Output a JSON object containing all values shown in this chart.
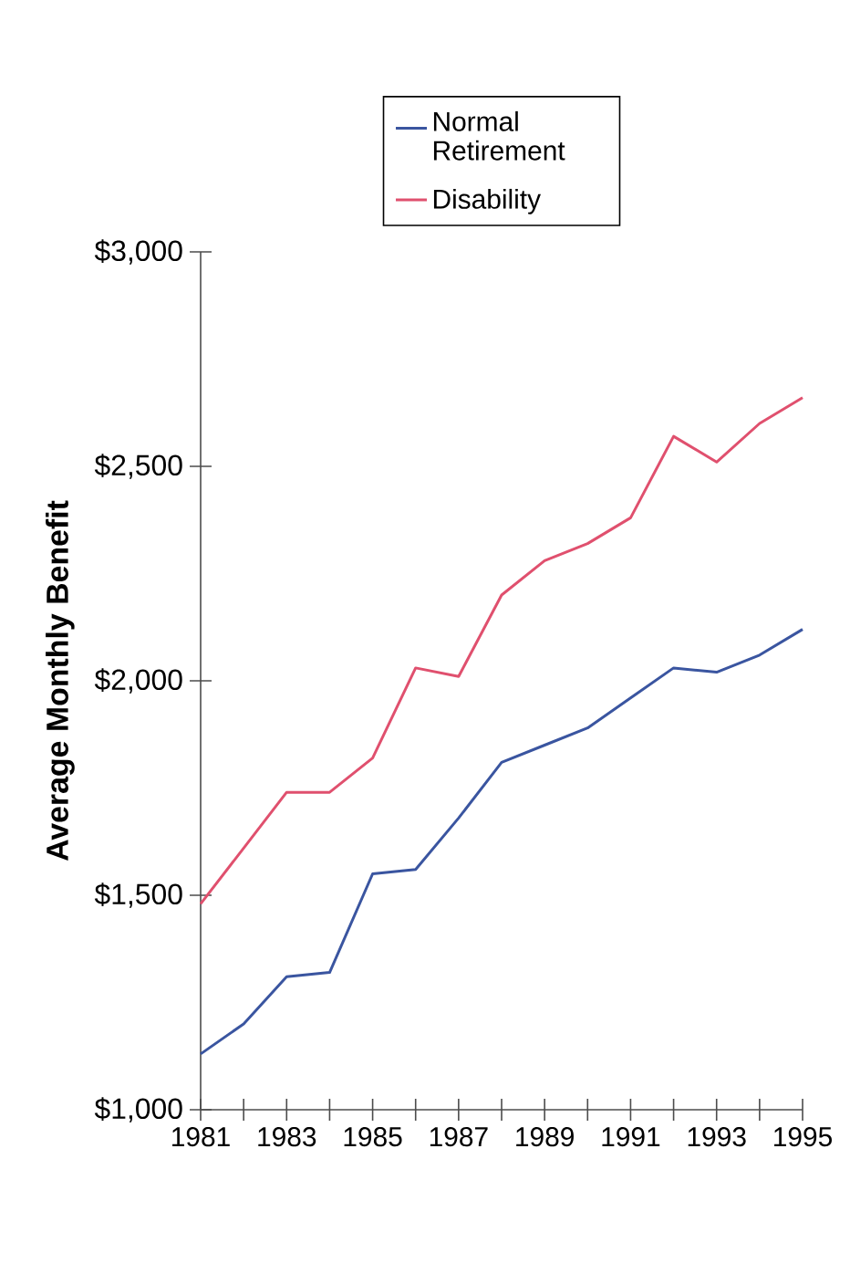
{
  "chart_data": {
    "type": "line",
    "ylabel": "Average Monthly Benefit",
    "x": [
      1981,
      1982,
      1983,
      1984,
      1985,
      1986,
      1987,
      1988,
      1989,
      1990,
      1991,
      1992,
      1993,
      1994,
      1995
    ],
    "series": [
      {
        "name": "Normal Retirement",
        "color": "#3a55a0",
        "values": [
          1130,
          1200,
          1310,
          1320,
          1550,
          1560,
          1680,
          1810,
          1850,
          1890,
          1960,
          2030,
          2020,
          2060,
          2120
        ]
      },
      {
        "name": "Disability",
        "color": "#e0506e",
        "values": [
          1480,
          1610,
          1740,
          1740,
          1820,
          2030,
          2010,
          2200,
          2280,
          2320,
          2380,
          2570,
          2510,
          2600,
          2660
        ]
      }
    ],
    "xlim": [
      1981,
      1995
    ],
    "xticks": [
      {
        "value": 1981,
        "label": "1981"
      },
      {
        "value": 1982,
        "label": null
      },
      {
        "value": 1983,
        "label": "1983"
      },
      {
        "value": 1984,
        "label": null
      },
      {
        "value": 1985,
        "label": "1985"
      },
      {
        "value": 1986,
        "label": null
      },
      {
        "value": 1987,
        "label": "1987"
      },
      {
        "value": 1988,
        "label": null
      },
      {
        "value": 1989,
        "label": "1989"
      },
      {
        "value": 1990,
        "label": null
      },
      {
        "value": 1991,
        "label": "1991"
      },
      {
        "value": 1992,
        "label": null
      },
      {
        "value": 1993,
        "label": "1993"
      },
      {
        "value": 1994,
        "label": null
      },
      {
        "value": 1995,
        "label": "1995"
      }
    ],
    "ylim": [
      1000,
      3000
    ],
    "yticks": [
      {
        "value": 1000,
        "label": "$1,000"
      },
      {
        "value": 1500,
        "label": "$1,500"
      },
      {
        "value": 2000,
        "label": "$2,000"
      },
      {
        "value": 2500,
        "label": "$2,500"
      },
      {
        "value": 3000,
        "label": "$3,000"
      }
    ],
    "grid": false,
    "legend": "top",
    "marker": "none",
    "line_style": "solid"
  }
}
